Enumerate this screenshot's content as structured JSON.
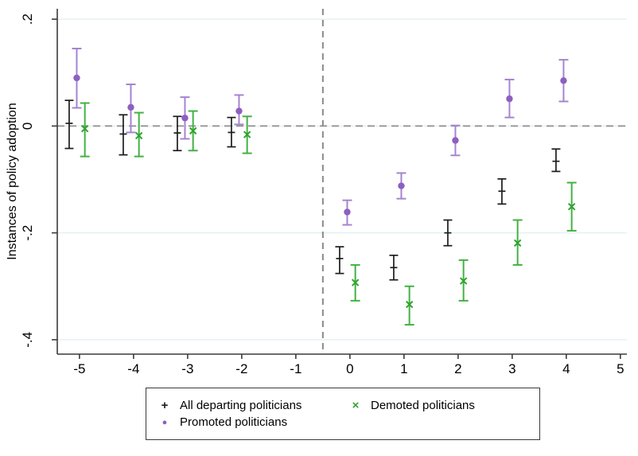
{
  "chart_data": {
    "type": "scatter",
    "subtype": "error-bar-event-study",
    "title": "",
    "ylabel": "Instances of policy adoption",
    "xlabel": "",
    "x_ticks": [
      -5,
      -4,
      -3,
      -2,
      -1,
      0,
      1,
      2,
      3,
      4,
      5
    ],
    "y_ticks": [
      {
        "label": ".2",
        "value": 0.2
      },
      {
        "label": "0",
        "value": 0.0
      },
      {
        "label": "-.2",
        "value": -0.2
      },
      {
        "label": "-.4",
        "value": -0.4
      }
    ],
    "xlim": [
      -5.41,
      5.12
    ],
    "ylim": [
      -0.427,
      0.2195
    ],
    "grid": true,
    "legend_position": "bottom",
    "legend_order": [
      0,
      2,
      1
    ],
    "reference_lines": {
      "horizontal_y": 0,
      "vertical_x": -0.5
    },
    "colors": {
      "gridline": "#e3edf1",
      "axis": "#3b3b3b",
      "dashed_reference": "#8a8a8a",
      "tick_label": "#000000",
      "legend_border": "#3a3a3a"
    },
    "series": [
      {
        "name": "All departing politicians",
        "marker": "plus",
        "marker_color": "#1c1c1c",
        "bar_color": "#1c1c1c",
        "dx": -0.19,
        "points": [
          {
            "x": -5,
            "y": 0.005,
            "lo": -0.042,
            "hi": 0.048
          },
          {
            "x": -4,
            "y": -0.015,
            "lo": -0.054,
            "hi": 0.021
          },
          {
            "x": -3,
            "y": -0.013,
            "lo": -0.046,
            "hi": 0.018
          },
          {
            "x": -2,
            "y": -0.012,
            "lo": -0.039,
            "hi": 0.016
          },
          {
            "x": 0,
            "y": -0.248,
            "lo": -0.276,
            "hi": -0.226
          },
          {
            "x": 1,
            "y": -0.265,
            "lo": -0.288,
            "hi": -0.242
          },
          {
            "x": 2,
            "y": -0.2,
            "lo": -0.224,
            "hi": -0.176
          },
          {
            "x": 3,
            "y": -0.122,
            "lo": -0.146,
            "hi": -0.099
          },
          {
            "x": 4,
            "y": -0.066,
            "lo": -0.085,
            "hi": -0.043
          }
        ]
      },
      {
        "name": "Promoted politicians",
        "marker": "circle",
        "marker_color": "#8d5fc0",
        "bar_color": "#a584d1",
        "dx": -0.05,
        "points": [
          {
            "x": -5,
            "y": 0.09,
            "lo": 0.034,
            "hi": 0.145
          },
          {
            "x": -4,
            "y": 0.035,
            "lo": -0.012,
            "hi": 0.078
          },
          {
            "x": -3,
            "y": 0.015,
            "lo": -0.024,
            "hi": 0.054
          },
          {
            "x": -2,
            "y": 0.028,
            "lo": 0.003,
            "hi": 0.058
          },
          {
            "x": 0,
            "y": -0.161,
            "lo": -0.185,
            "hi": -0.139
          },
          {
            "x": 1,
            "y": -0.112,
            "lo": -0.136,
            "hi": -0.088
          },
          {
            "x": 2,
            "y": -0.027,
            "lo": -0.055,
            "hi": 0.001
          },
          {
            "x": 3,
            "y": 0.051,
            "lo": 0.016,
            "hi": 0.087
          },
          {
            "x": 4,
            "y": 0.085,
            "lo": 0.046,
            "hi": 0.124
          }
        ]
      },
      {
        "name": "Demoted politicians",
        "marker": "x",
        "marker_color": "#2fa42f",
        "bar_color": "#43b143",
        "dx": 0.1,
        "points": [
          {
            "x": -5,
            "y": -0.005,
            "lo": -0.057,
            "hi": 0.043
          },
          {
            "x": -4,
            "y": -0.018,
            "lo": -0.057,
            "hi": 0.025
          },
          {
            "x": -3,
            "y": -0.009,
            "lo": -0.046,
            "hi": 0.028
          },
          {
            "x": -2,
            "y": -0.016,
            "lo": -0.051,
            "hi": 0.018
          },
          {
            "x": 0,
            "y": -0.293,
            "lo": -0.327,
            "hi": -0.26
          },
          {
            "x": 1,
            "y": -0.334,
            "lo": -0.372,
            "hi": -0.3
          },
          {
            "x": 2,
            "y": -0.29,
            "lo": -0.327,
            "hi": -0.251
          },
          {
            "x": 3,
            "y": -0.219,
            "lo": -0.26,
            "hi": -0.176
          },
          {
            "x": 4,
            "y": -0.151,
            "lo": -0.196,
            "hi": -0.106
          }
        ]
      }
    ]
  }
}
